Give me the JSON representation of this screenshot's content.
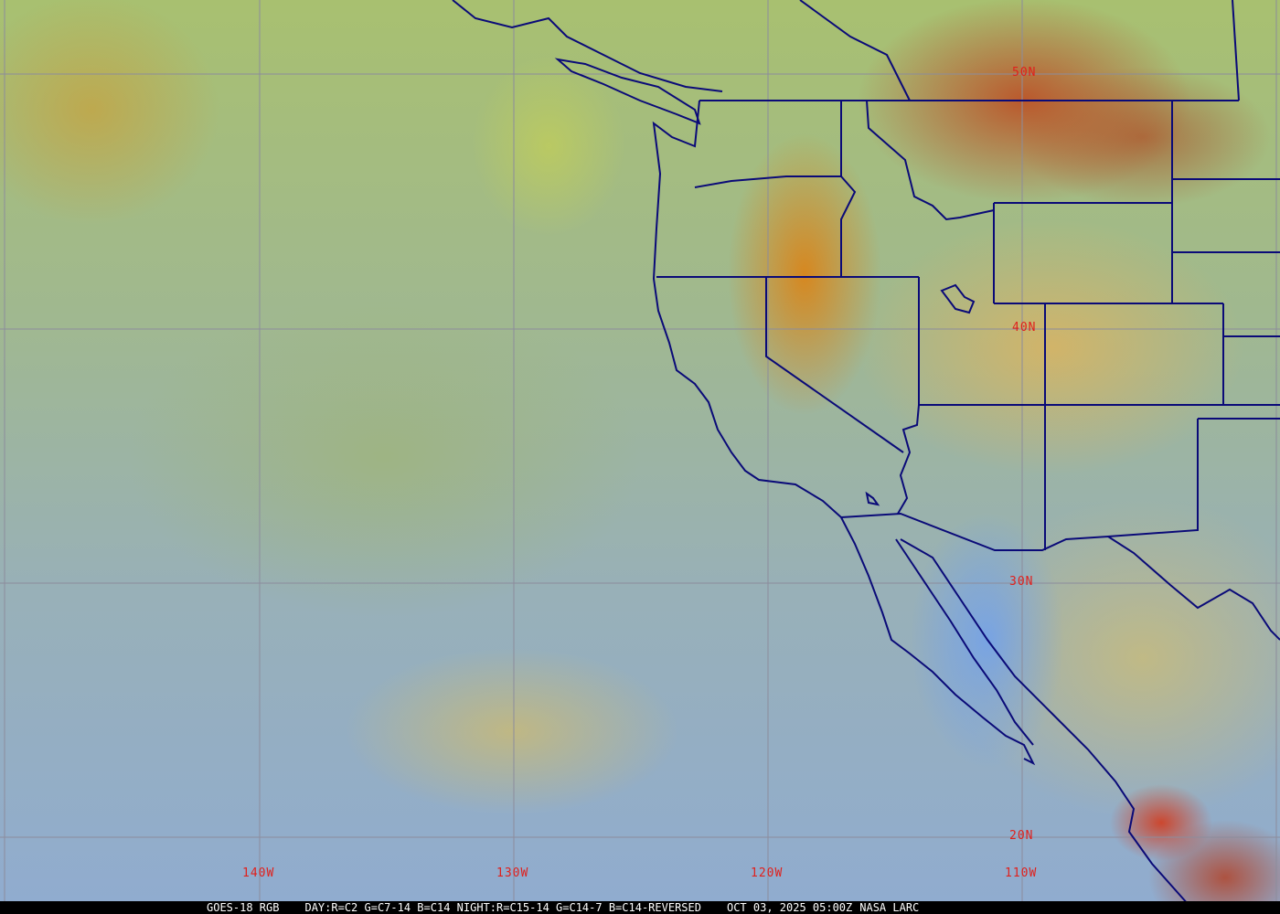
{
  "caption": {
    "satellite": "GOES-18 RGB",
    "recipe": "DAY:R=C2 G=C7-14 B=C14 NIGHT:R=C15-14 G=C14-7 B=C14-REVERSED",
    "datetime": "OCT 03, 2025 05:00Z",
    "source": "NASA LARC"
  },
  "grid": {
    "lat_labels": [
      "50N",
      "40N",
      "30N",
      "20N"
    ],
    "lon_labels": [
      "140W",
      "130W",
      "120W",
      "110W"
    ]
  },
  "colors": {
    "grid": "#8c8c9c",
    "label": "#e0201c",
    "borders": "#0a0a78"
  }
}
